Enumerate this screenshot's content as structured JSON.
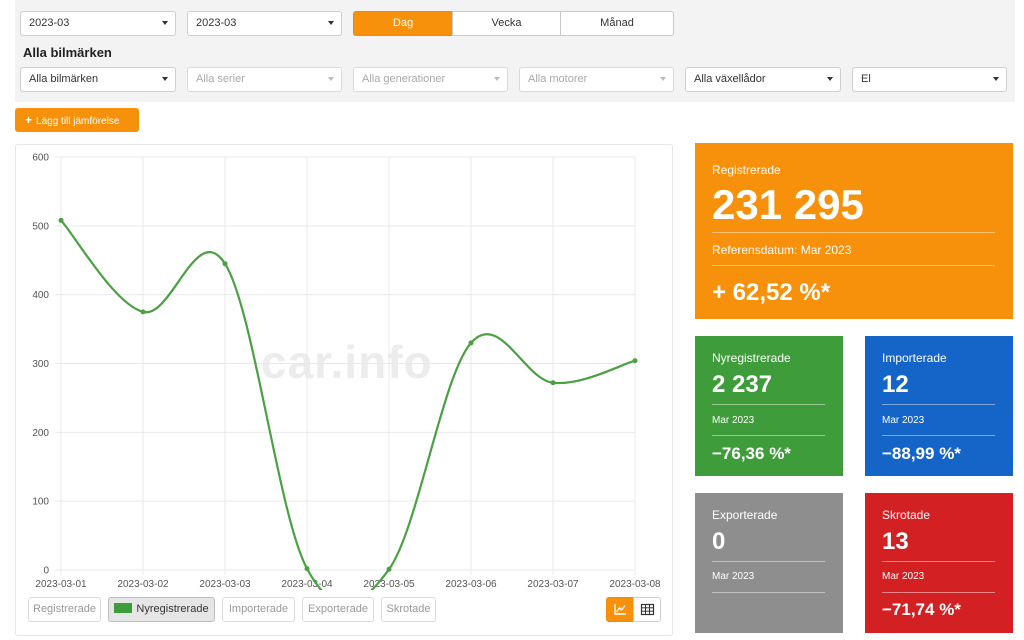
{
  "filters": {
    "from_date": "2023-03",
    "to_date": "2023-03",
    "period_tabs": [
      {
        "label": "Dag",
        "active": true
      },
      {
        "label": "Vecka",
        "active": false
      },
      {
        "label": "Månad",
        "active": false
      }
    ],
    "section_title": "Alla bilmärken",
    "brand": "Alla bilmärken",
    "series": "Alla serier",
    "generations": "Alla generationer",
    "engines": "Alla motorer",
    "gearboxes": "Alla växellådor",
    "fuel": "El"
  },
  "add_compare_label": "Lägg till jämförelse",
  "watermark": "car.info",
  "chart_data": {
    "type": "line",
    "x": [
      "2023-03-01",
      "2023-03-02",
      "2023-03-03",
      "2023-03-04",
      "2023-03-05",
      "2023-03-06",
      "2023-03-07",
      "2023-03-08"
    ],
    "series": [
      {
        "name": "Nyregistrerade",
        "values": [
          508,
          375,
          445,
          2,
          1,
          330,
          272,
          304
        ],
        "color": "#4aa043"
      }
    ],
    "ylim": [
      0,
      600
    ],
    "yticks": [
      0,
      100,
      200,
      300,
      400,
      500,
      600
    ],
    "grid": true
  },
  "legend": [
    {
      "label": "Registrerade",
      "active": false
    },
    {
      "label": "Nyregistrerade",
      "active": true
    },
    {
      "label": "Importerade",
      "active": false
    },
    {
      "label": "Exporterade",
      "active": false
    },
    {
      "label": "Skrotade",
      "active": false
    }
  ],
  "view_toggle": {
    "chart_icon": "line-chart-icon",
    "table_icon": "table-icon",
    "active": "chart"
  },
  "stats": {
    "registered": {
      "label": "Registrerade",
      "value": "231 295",
      "ref": "Referensdatum: Mar 2023",
      "change": "+ 62,52 %*",
      "color": "#f7900a"
    },
    "new": {
      "label": "Nyregistrerade",
      "value": "2 237",
      "period": "Mar 2023",
      "change": "−76,36 %*",
      "color": "#3f9c3a"
    },
    "imported": {
      "label": "Importerade",
      "value": "12",
      "period": "Mar 2023",
      "change": "−88,99 %*",
      "color": "#1565c8"
    },
    "exported": {
      "label": "Exporterade",
      "value": "0",
      "period": "Mar 2023",
      "change": "",
      "color": "#8e8e8e"
    },
    "scrapped": {
      "label": "Skrotade",
      "value": "13",
      "period": "Mar 2023",
      "change": "−71,74 %*",
      "color": "#d32023"
    }
  }
}
